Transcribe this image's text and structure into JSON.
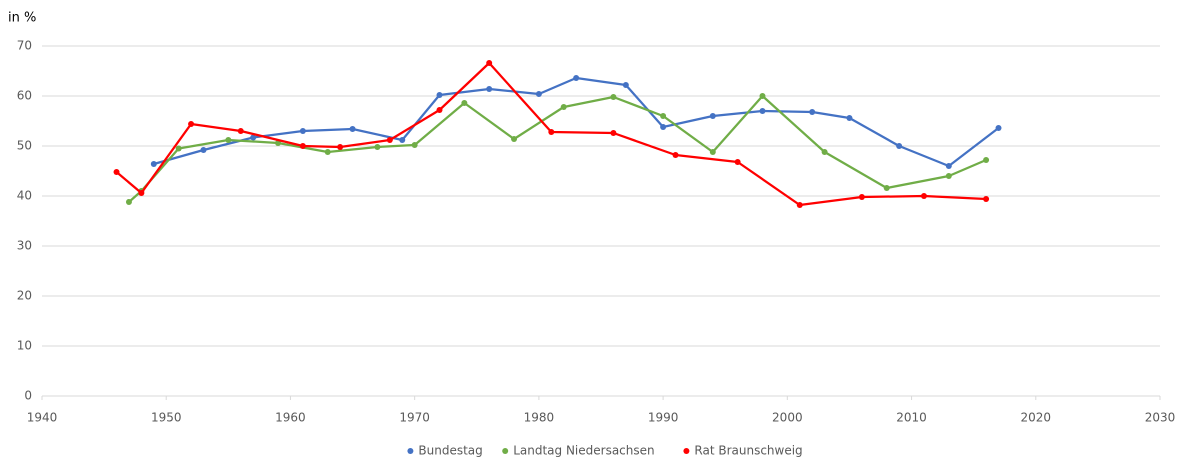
{
  "chart_data": {
    "type": "line",
    "y_unit_label": "in %",
    "xlim": [
      1940,
      2030
    ],
    "xticks": [
      1940,
      1950,
      1960,
      1970,
      1980,
      1990,
      2000,
      2010,
      2020,
      2030
    ],
    "ylim": [
      0,
      70
    ],
    "yticks": [
      0,
      10,
      20,
      30,
      40,
      50,
      60,
      70
    ],
    "grid": true,
    "legend": "bottom",
    "series": [
      {
        "name": "Bundestag",
        "color": "#4472c4",
        "x": [
          1949,
          1953,
          1957,
          1961,
          1965,
          1969,
          1972,
          1976,
          1980,
          1983,
          1987,
          1990,
          1994,
          1998,
          2002,
          2005,
          2009,
          2013,
          2017
        ],
        "values": [
          46.4,
          49.2,
          51.7,
          53,
          53.4,
          51.2,
          60.2,
          61.4,
          60.4,
          63.6,
          62.2,
          53.8,
          56,
          57,
          56.8,
          55.6,
          50,
          46,
          53.6
        ]
      },
      {
        "name": "Landtag Niedersachsen",
        "color": "#70ad47",
        "x": [
          1947,
          1948,
          1951,
          1955,
          1959,
          1963,
          1967,
          1970,
          1974,
          1978,
          1982,
          1986,
          1990,
          1994,
          1998,
          2003,
          2008,
          2013,
          2016
        ],
        "values": [
          38.8,
          41,
          49.5,
          51.2,
          50.6,
          48.8,
          49.8,
          50.2,
          58.6,
          51.4,
          57.8,
          59.8,
          56,
          48.8,
          60,
          48.8,
          41.6,
          44,
          47.2
        ]
      },
      {
        "name": "Rat Braunschweig",
        "color": "#ff0000",
        "x": [
          1946,
          1948,
          1952,
          1956,
          1961,
          1964,
          1968,
          1972,
          1976,
          1981,
          1986,
          1991,
          1996,
          2001,
          2006,
          2011,
          2016
        ],
        "values": [
          44.8,
          40.6,
          54.4,
          53,
          50,
          49.8,
          51.2,
          57.2,
          66.6,
          52.8,
          52.6,
          48.2,
          46.8,
          38.2,
          39.8,
          40,
          39.4
        ]
      }
    ]
  }
}
